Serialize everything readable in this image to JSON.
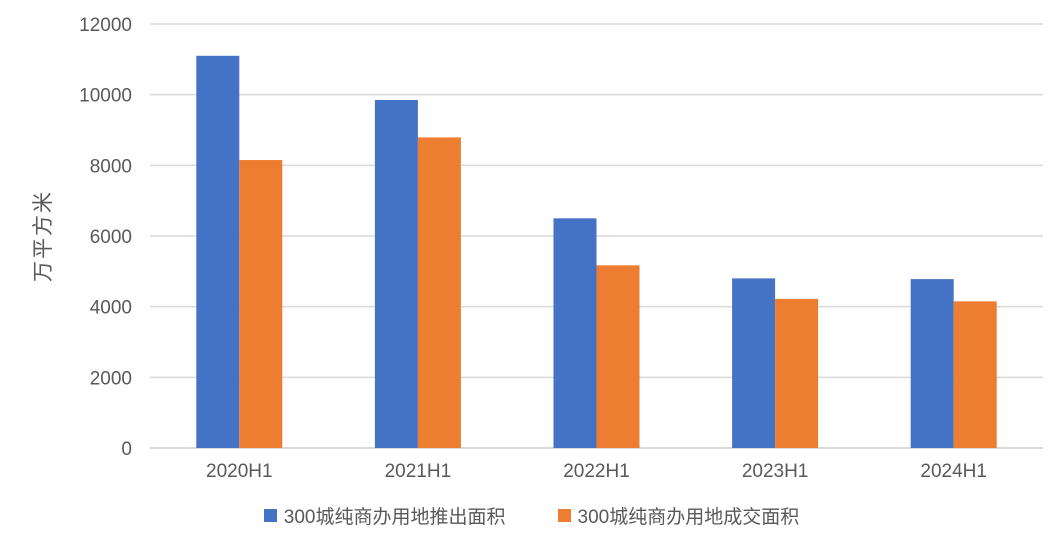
{
  "chart_data": {
    "type": "bar",
    "title": "",
    "xlabel": "",
    "ylabel": "万平方米",
    "categories": [
      "2020H1",
      "2021H1",
      "2022H1",
      "2023H1",
      "2024H1"
    ],
    "series": [
      {
        "name": "300城纯商办用地推出面积",
        "color": "#4472C4",
        "values": [
          11100,
          9850,
          6500,
          4800,
          4780
        ]
      },
      {
        "name": "300城纯商办用地成交面积",
        "color": "#ED7D31",
        "values": [
          8150,
          8790,
          5170,
          4220,
          4150
        ]
      }
    ],
    "ylim": [
      0,
      12000
    ],
    "yticks": [
      0,
      2000,
      4000,
      6000,
      8000,
      10000,
      12000
    ],
    "grid": true,
    "legend_position": "bottom"
  },
  "colors": {
    "background": "#FFFFFF",
    "gridline": "#D9D9D9",
    "axis_line": "#D9D9D9",
    "axis_text": "#595959"
  }
}
